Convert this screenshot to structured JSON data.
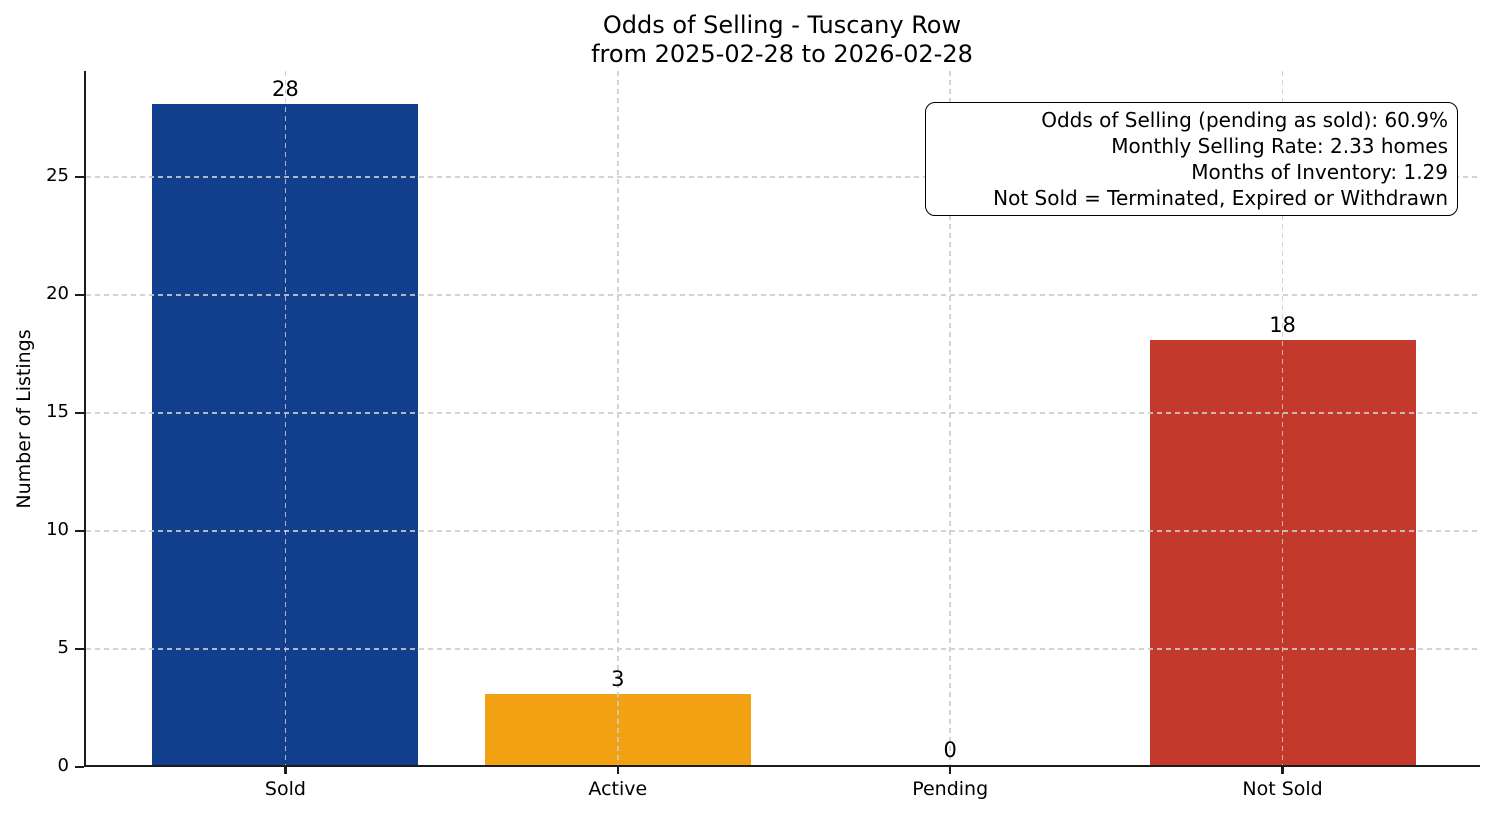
{
  "chart_data": {
    "type": "bar",
    "title_line1": "Odds of Selling - Tuscany Row",
    "title_line2": "from 2025-02-28 to 2026-02-28",
    "categories": [
      "Sold",
      "Active",
      "Pending",
      "Not Sold"
    ],
    "values": [
      28,
      3,
      0,
      18
    ],
    "value_labels": [
      "28",
      "3",
      "0",
      "18"
    ],
    "bar_colors": [
      "#113e8d",
      "#f2a113",
      null,
      "#c3392b"
    ],
    "ylabel": "Number of Listings",
    "xlabel": "",
    "yticks": [
      0,
      5,
      10,
      15,
      20,
      25
    ],
    "ylim": [
      0,
      29.5
    ],
    "grid": "dashed",
    "legend_position": "none",
    "annotation_box": {
      "lines": [
        "Odds of Selling (pending as sold): 60.9%",
        "Monthly Selling Rate: 2.33 homes",
        "Months of Inventory: 1.29",
        "Not Sold = Terminated, Expired or Withdrawn"
      ]
    },
    "colors": {
      "background": "#ffffff",
      "axis": "#1c1c1c",
      "gridline": "#cdcdcd",
      "text": "#000000"
    }
  }
}
